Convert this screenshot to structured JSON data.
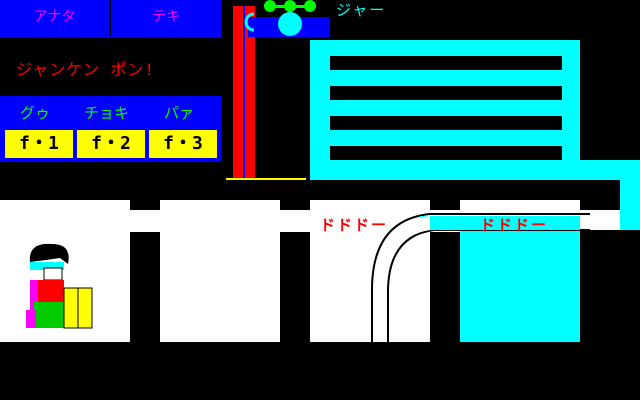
{
  "hud": {
    "you_label": "アナタ",
    "enemy_label": "テキ",
    "message": "ジャンケン ポン!",
    "hands": [
      "グゥ",
      "チョキ",
      "パァ"
    ],
    "keys": [
      "f・1",
      "f・2",
      "f・3"
    ]
  },
  "scene": {
    "sound_shower": "ジャー",
    "sound_left": "ドドドー",
    "sound_right": "ドドドー"
  },
  "colors": {
    "hud_bg": "#0000ff",
    "key_bg": "#ffff00",
    "water": "#00ffff",
    "pipe": "#ff0000"
  }
}
